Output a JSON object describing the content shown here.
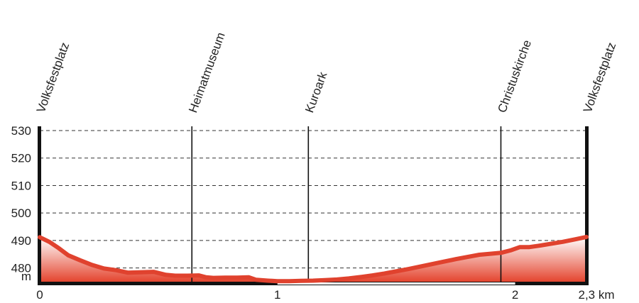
{
  "chart_data": {
    "type": "area",
    "title": "",
    "xlabel": "",
    "ylabel": "m",
    "x_unit": "km",
    "xlim": [
      0,
      2.3
    ],
    "ylim": [
      475,
      530
    ],
    "y_ticks": [
      480,
      490,
      500,
      510,
      520,
      530
    ],
    "x_ticks": [
      {
        "value": 0,
        "label": "0"
      },
      {
        "value": 1,
        "label": "1"
      },
      {
        "value": 2,
        "label": "2"
      },
      {
        "value": 2.3,
        "label": "2,3 km"
      }
    ],
    "grid": true,
    "colors": {
      "line": "#e0422e",
      "fill_top": "#ffffff",
      "fill_bottom": "#e4452f",
      "axis": "#111111",
      "grid": "#333333"
    },
    "waypoints": [
      {
        "name": "Volksfestplatz",
        "x": 0
      },
      {
        "name": "Heimatmuseum",
        "x": 0.64
      },
      {
        "name": "Kuroark",
        "x": 1.13
      },
      {
        "name": "Christuskirche",
        "x": 1.94
      },
      {
        "name": "Volksfestplatz",
        "x": 2.3
      }
    ],
    "series": [
      {
        "x": [
          0,
          0.04,
          0.08,
          0.12,
          0.17,
          0.22,
          0.27,
          0.32,
          0.37,
          0.42,
          0.48,
          0.53,
          0.57,
          0.62,
          0.67,
          0.7,
          0.73,
          0.78,
          0.83,
          0.88,
          0.91,
          0.96,
          1.0,
          1.05,
          1.1,
          1.15,
          1.2,
          1.25,
          1.3,
          1.35,
          1.4,
          1.45,
          1.5,
          1.55,
          1.6,
          1.65,
          1.7,
          1.75,
          1.8,
          1.85,
          1.9,
          1.94,
          1.98,
          2.02,
          2.06,
          2.1,
          2.15,
          2.2,
          2.25,
          2.3
        ],
        "y": [
          491.2,
          489.5,
          487.2,
          484.6,
          482.8,
          481.1,
          479.8,
          479.2,
          478.3,
          478.4,
          478.6,
          477.5,
          477.2,
          477.2,
          477.3,
          476.6,
          476.4,
          476.5,
          476.5,
          476.6,
          475.7,
          475.4,
          475.2,
          475.2,
          475.3,
          475.4,
          475.6,
          475.8,
          476.2,
          476.7,
          477.3,
          478.0,
          478.8,
          479.6,
          480.5,
          481.4,
          482.3,
          483.2,
          484.0,
          484.8,
          485.2,
          485.5,
          486.4,
          487.6,
          487.6,
          488.1,
          488.8,
          489.5,
          490.4,
          491.3
        ]
      }
    ]
  }
}
